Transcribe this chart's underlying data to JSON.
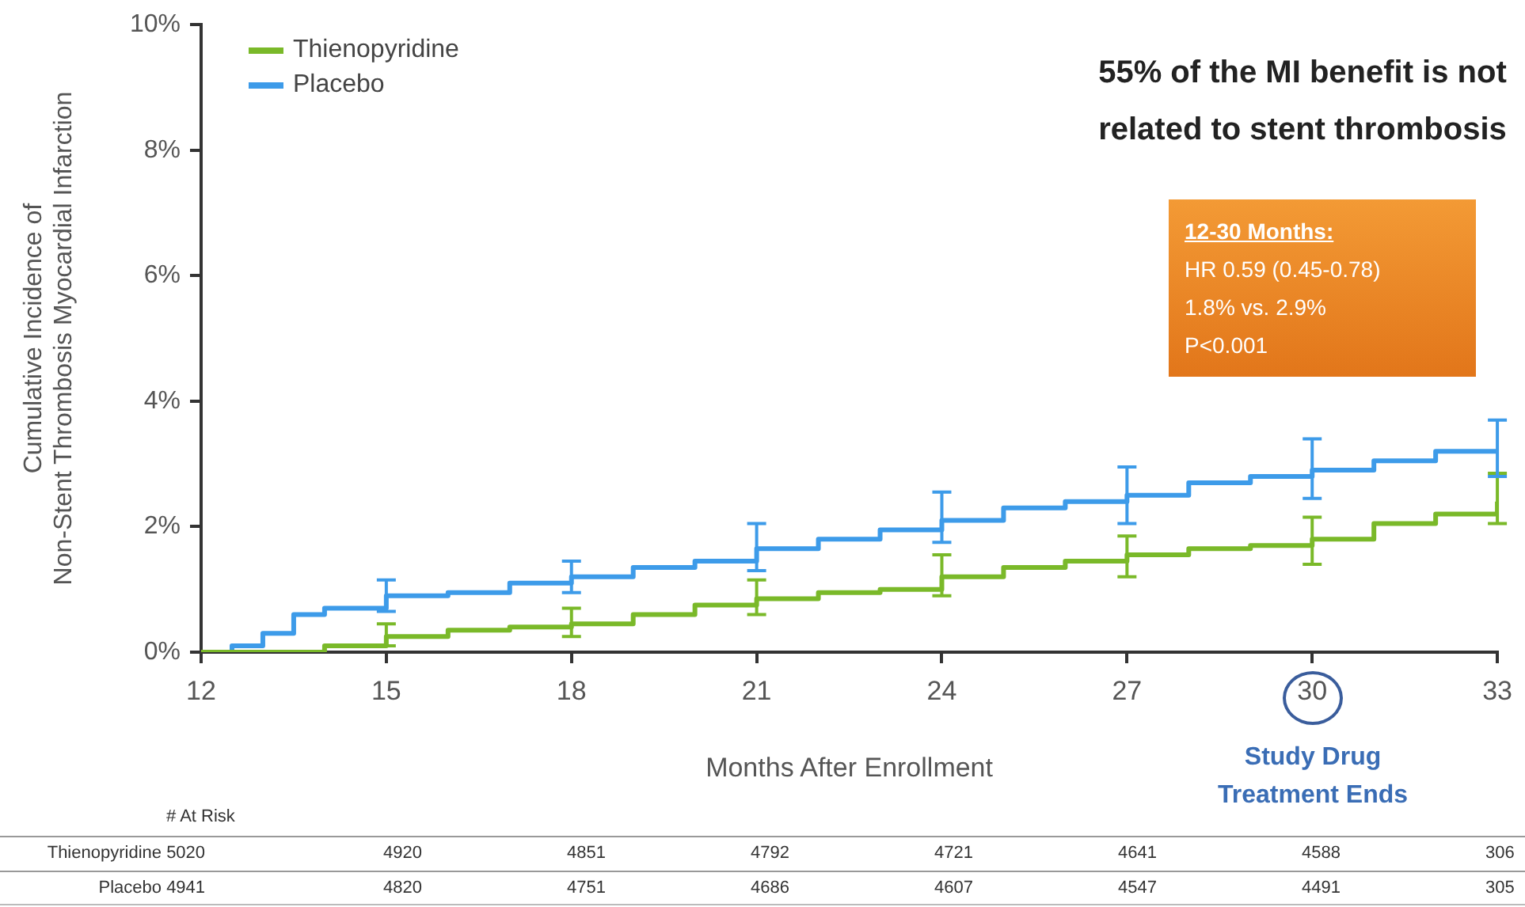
{
  "chart_data": [
    {
      "type": "step",
      "title": "55% of the MI benefit is not related to stent thrombosis",
      "xlabel": "Months After Enrollment",
      "ylabel": "Cumulative Incidence of\nNon-Stent Thrombosis Myocardial Infarction",
      "x": [
        12,
        12.5,
        13,
        13.5,
        14,
        15,
        16,
        17,
        18,
        19,
        20,
        21,
        22,
        23,
        24,
        25,
        26,
        27,
        28,
        29,
        30,
        31,
        32,
        33
      ],
      "series": [
        {
          "name": "Thienopyridine",
          "color": "#7ab929",
          "values": [
            0,
            0,
            0,
            0,
            0.1,
            0.25,
            0.35,
            0.4,
            0.45,
            0.6,
            0.75,
            0.85,
            0.95,
            1.0,
            1.2,
            1.35,
            1.45,
            1.55,
            1.65,
            1.7,
            1.8,
            2.05,
            2.2,
            2.4
          ],
          "errors": [
            null,
            null,
            null,
            null,
            null,
            [
              0.1,
              0.45
            ],
            null,
            null,
            [
              0.25,
              0.7
            ],
            null,
            null,
            [
              0.6,
              1.15
            ],
            null,
            null,
            [
              0.9,
              1.55
            ],
            null,
            null,
            [
              1.2,
              1.85
            ],
            null,
            null,
            [
              1.4,
              2.15
            ],
            null,
            null,
            [
              2.05,
              2.85
            ]
          ]
        },
        {
          "name": "Placebo",
          "color": "#3d9be9",
          "values": [
            0,
            0.1,
            0.3,
            0.6,
            0.7,
            0.9,
            0.95,
            1.1,
            1.2,
            1.35,
            1.45,
            1.65,
            1.8,
            1.95,
            2.1,
            2.3,
            2.4,
            2.5,
            2.7,
            2.8,
            2.9,
            3.05,
            3.2,
            3.2
          ],
          "errors": [
            null,
            null,
            null,
            null,
            null,
            [
              0.65,
              1.15
            ],
            null,
            null,
            [
              0.95,
              1.45
            ],
            null,
            null,
            [
              1.3,
              2.05
            ],
            null,
            null,
            [
              1.75,
              2.55
            ],
            null,
            null,
            [
              2.05,
              2.95
            ],
            null,
            null,
            [
              2.45,
              3.4
            ],
            null,
            null,
            [
              2.8,
              3.7
            ]
          ]
        }
      ],
      "xlim": [
        12,
        33
      ],
      "xticks": [
        12,
        15,
        18,
        21,
        24,
        27,
        30,
        33
      ],
      "ylim": [
        0,
        10
      ],
      "yticks": [
        {
          "value": 0,
          "label": "0%"
        },
        {
          "value": 2,
          "label": "2%"
        },
        {
          "value": 4,
          "label": "4%"
        },
        {
          "value": 6,
          "label": "6%"
        },
        {
          "value": 8,
          "label": "8%"
        },
        {
          "value": 10,
          "label": "10%"
        }
      ],
      "annotations": [
        "12-30 Months:",
        "HR 0.59 (0.45-0.78)",
        "1.8% vs. 2.9%",
        "P<0.001",
        "Study Drug Treatment Ends",
        "# At Risk",
        "Thienopyridine 5020 4920 4851 4792 4721 4641 4588 306",
        "Placebo 4941 4820 4751 4686 4607 4547 4491 305"
      ],
      "legend": "top left",
      "marker": "none",
      "grid": false
    }
  ]
}
